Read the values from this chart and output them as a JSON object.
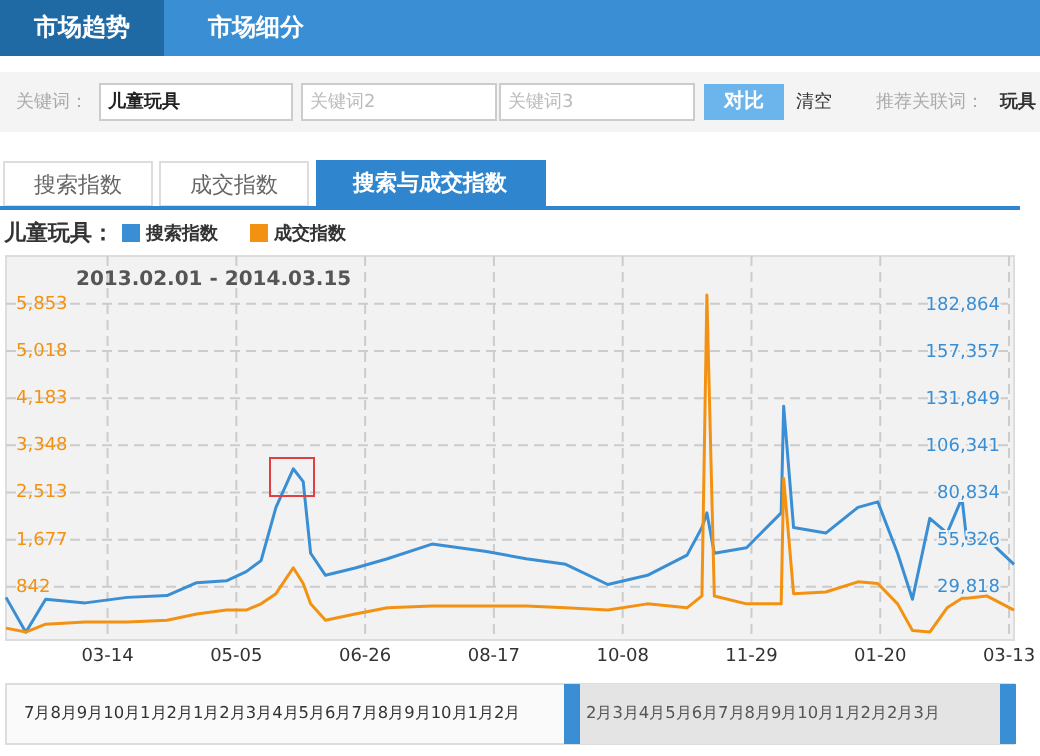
{
  "chart_data": {
    "type": "line",
    "subtitle": "2013.02.01 - 2014.03.15",
    "legend_title": "儿童玩具：",
    "legend": "top left",
    "grid": true,
    "annotations": [
      "市场趋势",
      "市场细分",
      "关键词：",
      "儿童玩具",
      "关键词2",
      "关键词3",
      "对比",
      "清空",
      "推荐关联词：",
      "玩具",
      "搜索指数",
      "成交指数",
      "搜索与成交指数",
      "7月8月9月10月1月2月1月2月3月4月5月6月7月8月9月10月1月2月",
      "2月3月4月5月6月7月8月9月10月1月2月2月3月"
    ],
    "x": [
      "2013-02-01",
      "2013-02-09",
      "2013-02-17",
      "2013-03-05",
      "2013-03-22",
      "2013-04-07",
      "2013-04-19",
      "2013-05-01",
      "2013-05-09",
      "2013-05-15",
      "2013-05-21",
      "2013-05-28",
      "2013-06-01",
      "2013-06-04",
      "2013-06-10",
      "2013-06-22",
      "2013-07-05",
      "2013-07-23",
      "2013-08-14",
      "2013-08-30",
      "2013-09-15",
      "2013-10-02",
      "2013-10-18",
      "2013-11-03",
      "2013-11-09",
      "2013-11-11",
      "2013-11-14",
      "2013-11-27",
      "2013-12-11",
      "2013-12-12",
      "2013-12-16",
      "2013-12-29",
      "2014-01-11",
      "2014-01-19",
      "2014-01-27",
      "2014-02-02",
      "2014-02-09",
      "2014-02-16",
      "2014-02-22",
      "2014-02-24",
      "2014-03-04",
      "2014-03-15"
    ],
    "xlim": [
      "2013-02-01",
      "2014-03-15"
    ],
    "xticks": [
      {
        "value": "2013-03-14",
        "label": "03-14"
      },
      {
        "value": "2013-05-05",
        "label": "05-05"
      },
      {
        "value": "2013-06-26",
        "label": "06-26"
      },
      {
        "value": "2013-08-17",
        "label": "08-17"
      },
      {
        "value": "2013-10-08",
        "label": "10-08"
      },
      {
        "value": "2013-11-29",
        "label": "11-29"
      },
      {
        "value": "2014-01-20",
        "label": "01-20"
      },
      {
        "value": "2014-03-13",
        "label": "03-13"
      }
    ],
    "ylim": [
      -100,
      6700
    ],
    "yticks": [
      {
        "value": 842,
        "label": "842"
      },
      {
        "value": 1677,
        "label": "1,677"
      },
      {
        "value": 2513,
        "label": "2,513"
      },
      {
        "value": 3348,
        "label": "3,348"
      },
      {
        "value": 4183,
        "label": "4,183"
      },
      {
        "value": 5018,
        "label": "5,018"
      },
      {
        "value": 5853,
        "label": "5,853"
      }
    ],
    "y2lim": [
      800,
      209800
    ],
    "y2ticks": [
      {
        "value": 29818,
        "label": "29,818"
      },
      {
        "value": 55326,
        "label": "55,326"
      },
      {
        "value": 80834,
        "label": "80,834"
      },
      {
        "value": 106341,
        "label": "106,341"
      },
      {
        "value": 131849,
        "label": "131,849"
      },
      {
        "value": 157357,
        "label": "157,357"
      },
      {
        "value": 182864,
        "label": "182,864"
      }
    ],
    "series": [
      {
        "name": "搜索指数",
        "color": "#3a8fd4",
        "axis": "y2",
        "values": [
          24000,
          5000,
          23000,
          21000,
          24000,
          25000,
          32000,
          33000,
          38000,
          44000,
          73000,
          94000,
          87000,
          48000,
          36000,
          40000,
          45000,
          53000,
          49000,
          45000,
          42000,
          31000,
          36000,
          47000,
          62000,
          70000,
          48000,
          51000,
          70000,
          128000,
          62000,
          59000,
          73000,
          76000,
          48000,
          23000,
          67000,
          59000,
          78000,
          54000,
          56000,
          42000
        ]
      },
      {
        "name": "成交指数",
        "color": "#f39212",
        "values": [
          110,
          40,
          180,
          220,
          220,
          250,
          360,
          430,
          430,
          540,
          720,
          1180,
          900,
          540,
          250,
          360,
          470,
          500,
          500,
          500,
          470,
          430,
          540,
          470,
          680,
          6010,
          680,
          540,
          540,
          2760,
          720,
          750,
          930,
          900,
          540,
          70,
          40,
          470,
          640,
          640,
          680,
          430
        ]
      }
    ]
  }
}
